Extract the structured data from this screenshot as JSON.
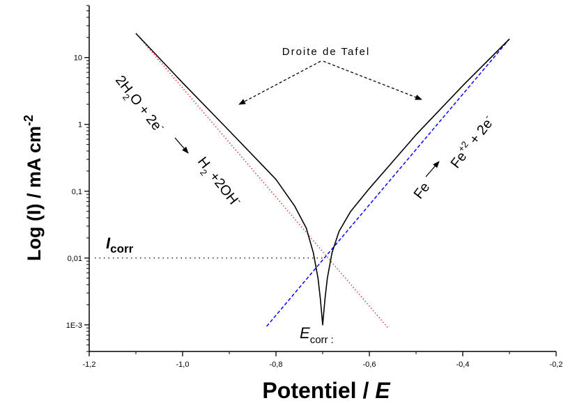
{
  "chart_data": {
    "type": "line",
    "xlabel": "Potentiel",
    "xlabel_sep": " / ",
    "xlabel_var": "E",
    "ylabel": "Log (I) / mA cm",
    "ylabel_exp": "-2",
    "y_scale": "log",
    "xlim": [
      -1.2,
      -0.2
    ],
    "ylim": [
      0.0004,
      60
    ],
    "x_ticks": [
      {
        "value": -1.2,
        "label": "-1,2"
      },
      {
        "value": -1.0,
        "label": "-1,0"
      },
      {
        "value": -0.8,
        "label": "-0,8"
      },
      {
        "value": -0.6,
        "label": "-0,6"
      },
      {
        "value": -0.4,
        "label": "-0,4"
      },
      {
        "value": -0.2,
        "label": "-0,2"
      }
    ],
    "y_ticks": [
      {
        "value": 0.001,
        "label": "1E-3"
      },
      {
        "value": 0.01,
        "label": "0,01"
      },
      {
        "value": 0.1,
        "label": "0,1"
      },
      {
        "value": 1,
        "label": "1"
      },
      {
        "value": 10,
        "label": "10"
      }
    ],
    "grid": false,
    "series": [
      {
        "role": "polarization",
        "color": "#000000",
        "dash": "solid",
        "x": [
          -1.1,
          -1.0,
          -0.9,
          -0.8,
          -0.76,
          -0.735,
          -0.72,
          -0.71,
          -0.705,
          -0.7,
          -0.695,
          -0.69,
          -0.68,
          -0.665,
          -0.64,
          -0.6,
          -0.5,
          -0.4,
          -0.3
        ],
        "y": [
          23,
          4.2,
          0.8,
          0.15,
          0.06,
          0.028,
          0.012,
          0.005,
          0.0025,
          0.001,
          0.0025,
          0.005,
          0.012,
          0.025,
          0.05,
          0.11,
          0.7,
          3.8,
          19
        ]
      },
      {
        "role": "cathodic-tafel",
        "color": "#ff0000",
        "dash": "dotted",
        "x": [
          -1.1,
          -0.56
        ],
        "y": [
          23,
          0.0009
        ]
      },
      {
        "role": "anodic-tafel",
        "color": "#0000ff",
        "dash": "dashed",
        "x": [
          -0.82,
          -0.3
        ],
        "y": [
          0.00095,
          19
        ]
      }
    ],
    "annotations": {
      "tafel_label": "Droite de Tafel",
      "icorr_label": "I",
      "icorr_sub": "corr",
      "icorr_value": 0.01,
      "ecorr_label": "E",
      "ecorr_sub": "corr",
      "ecorr_colon": ":",
      "cathodic_reaction": {
        "lhs_a": "2H",
        "lhs_a_sub": "2",
        "lhs_b": "O + 2e",
        "lhs_b_sup": "-",
        "rhs_a": "H",
        "rhs_a_sub": "2",
        "rhs_b": " +2OH",
        "rhs_b_sup": "-"
      },
      "anodic_reaction": {
        "lhs": "Fe",
        "rhs_a": "Fe",
        "rhs_a_sup": "+2",
        "rhs_b": " + 2e",
        "rhs_b_sup": "-"
      }
    }
  }
}
